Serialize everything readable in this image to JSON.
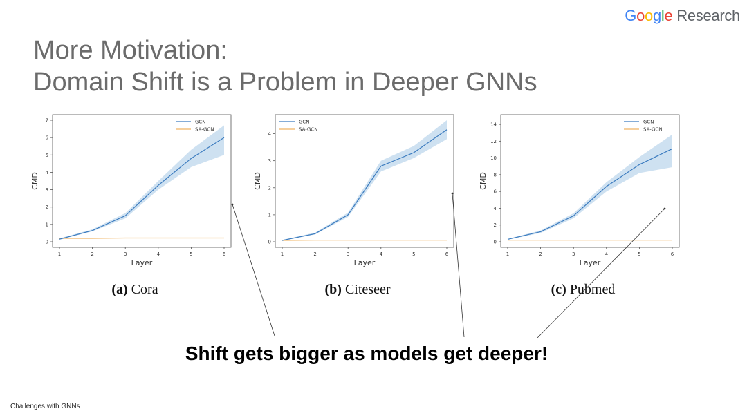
{
  "logo": {
    "letters": [
      {
        "ch": "G",
        "color": "#4285F4"
      },
      {
        "ch": "o",
        "color": "#EA4335"
      },
      {
        "ch": "o",
        "color": "#FBBC05"
      },
      {
        "ch": "g",
        "color": "#4285F4"
      },
      {
        "ch": "l",
        "color": "#34A853"
      },
      {
        "ch": "e",
        "color": "#EA4335"
      }
    ],
    "suffix": "Research"
  },
  "title": {
    "line1": "More Motivation:",
    "line2": "Domain Shift is a Problem in Deeper GNNs"
  },
  "headline": "Shift gets bigger as models get deeper!",
  "footer": "Challenges with GNNs",
  "colors": {
    "gcn": "#3b7bbf",
    "band": "#c6dcef",
    "sagcn": "#f0b565"
  },
  "chart_data": [
    {
      "type": "line",
      "caption_tag": "(a)",
      "caption_name": "Cora",
      "xlabel": "Layer",
      "ylabel": "CMD",
      "x": [
        1,
        2,
        3,
        4,
        5,
        6
      ],
      "xlim": [
        1,
        6
      ],
      "ylim": [
        0,
        7
      ],
      "yticks": [
        0,
        1,
        2,
        3,
        4,
        5,
        6,
        7
      ],
      "legend_position": "top-right",
      "series": [
        {
          "name": "GCN",
          "values": [
            0.15,
            0.65,
            1.5,
            3.25,
            4.8,
            6.0
          ],
          "band_low": [
            0.12,
            0.6,
            1.35,
            3.0,
            4.3,
            5.0
          ],
          "band_high": [
            0.2,
            0.72,
            1.65,
            3.5,
            5.3,
            6.7
          ]
        },
        {
          "name": "SA-GCN",
          "values": [
            0.2,
            0.2,
            0.22,
            0.22,
            0.22,
            0.22
          ]
        }
      ]
    },
    {
      "type": "line",
      "caption_tag": "(b)",
      "caption_name": "Citeseer",
      "xlabel": "Layer",
      "ylabel": "CMD",
      "x": [
        1,
        2,
        3,
        4,
        5,
        6
      ],
      "xlim": [
        1,
        6
      ],
      "ylim": [
        0,
        4.5
      ],
      "yticks": [
        0,
        1,
        2,
        3,
        4
      ],
      "legend_position": "top-left",
      "series": [
        {
          "name": "GCN",
          "values": [
            0.05,
            0.3,
            1.0,
            2.8,
            3.3,
            4.15
          ],
          "band_low": [
            0.04,
            0.27,
            0.92,
            2.6,
            3.1,
            3.8
          ],
          "band_high": [
            0.07,
            0.34,
            1.08,
            3.0,
            3.55,
            4.5
          ]
        },
        {
          "name": "SA-GCN",
          "values": [
            0.05,
            0.06,
            0.06,
            0.06,
            0.06,
            0.06
          ]
        }
      ]
    },
    {
      "type": "line",
      "caption_tag": "(c)",
      "caption_name": "Pubmed",
      "xlabel": "Layer",
      "ylabel": "CMD",
      "x": [
        1,
        2,
        3,
        4,
        5,
        6
      ],
      "xlim": [
        1,
        6
      ],
      "ylim": [
        0,
        14.5
      ],
      "yticks": [
        0,
        2,
        4,
        6,
        8,
        10,
        12,
        14
      ],
      "legend_position": "top-right",
      "series": [
        {
          "name": "GCN",
          "values": [
            0.3,
            1.2,
            3.1,
            6.6,
            9.2,
            11.1
          ],
          "band_low": [
            0.25,
            1.05,
            2.8,
            6.0,
            8.2,
            8.9
          ],
          "band_high": [
            0.35,
            1.35,
            3.4,
            7.1,
            10.1,
            12.8
          ]
        },
        {
          "name": "SA-GCN",
          "values": [
            0.2,
            0.2,
            0.2,
            0.2,
            0.2,
            0.2
          ]
        }
      ]
    }
  ]
}
